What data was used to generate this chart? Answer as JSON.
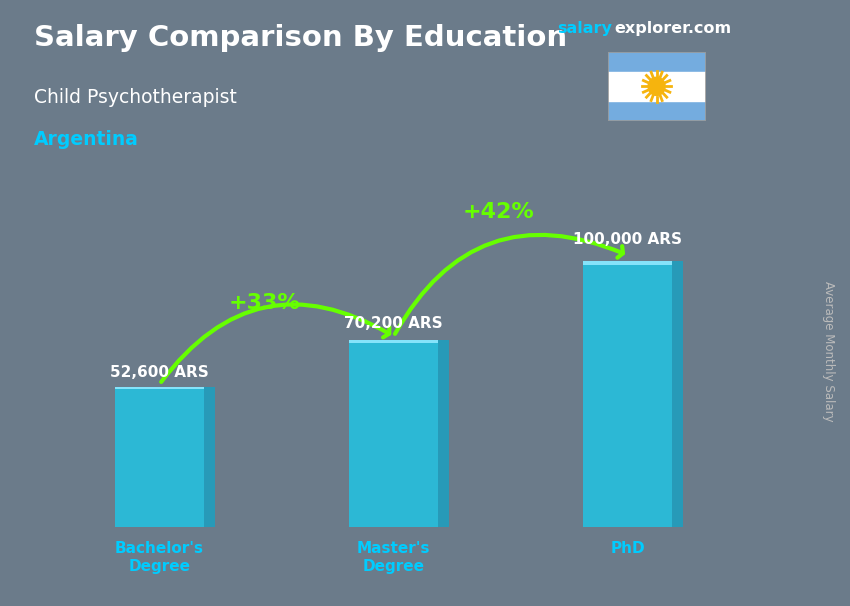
{
  "title_main": "Salary Comparison By Education",
  "title_sub": "Child Psychotherapist",
  "title_country": "Argentina",
  "ylabel": "Average Monthly Salary",
  "categories": [
    "Bachelor's\nDegree",
    "Master's\nDegree",
    "PhD"
  ],
  "values": [
    52600,
    70200,
    100000
  ],
  "value_labels": [
    "52,600 ARS",
    "70,200 ARS",
    "100,000 ARS"
  ],
  "bar_color": "#1EC6E6",
  "arrow_color": "#66FF00",
  "arrow_labels": [
    "+33%",
    "+42%"
  ],
  "background_color": "#6B7B8A",
  "title_color": "#FFFFFF",
  "sub_title_color": "#FFFFFF",
  "country_color": "#00CCFF",
  "value_label_color": "#FFFFFF",
  "category_label_color": "#00CCFF",
  "watermark_salary_color": "#00CCFF",
  "watermark_explorer_color": "#FFFFFF",
  "ylabel_color": "#BBBBBB",
  "ylim": [
    0,
    125000
  ],
  "bar_width": 0.38,
  "flag_light_blue": "#74ACDF",
  "flag_white": "#FFFFFF",
  "flag_sun": "#F6B40E"
}
